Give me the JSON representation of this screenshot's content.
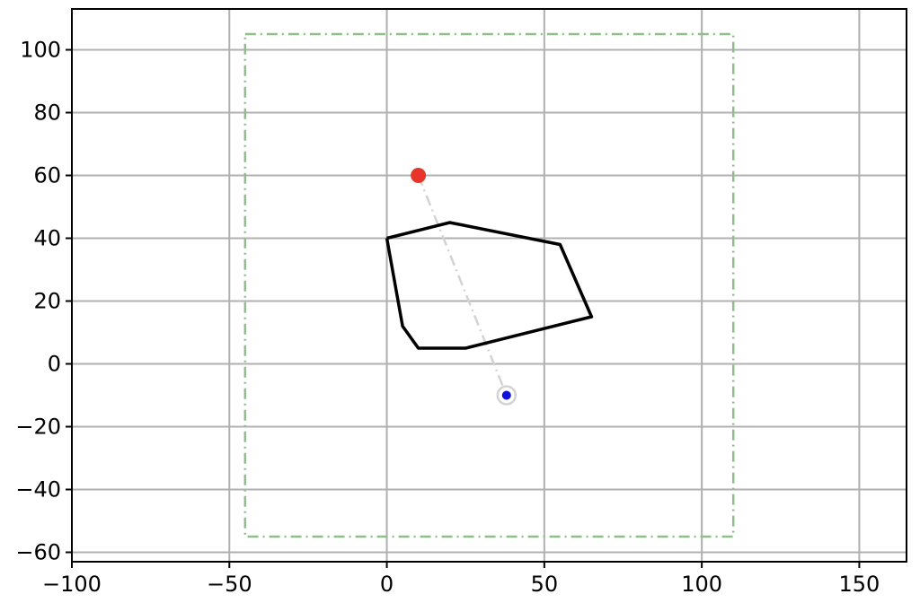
{
  "chart_data": {
    "type": "scatter",
    "xlim": [
      -100,
      165
    ],
    "ylim": [
      -63,
      113
    ],
    "xticks": [
      -100,
      -50,
      0,
      50,
      100,
      150
    ],
    "yticks": [
      -60,
      -40,
      -20,
      0,
      20,
      40,
      60,
      80,
      100
    ],
    "xtick_labels": [
      "−100",
      "−50",
      "0",
      "50",
      "100",
      "150"
    ],
    "ytick_labels": [
      "−60",
      "−40",
      "−20",
      "0",
      "20",
      "40",
      "60",
      "80",
      "100"
    ],
    "grid": true,
    "title": "",
    "xlabel": "",
    "ylabel": "",
    "polygon": {
      "points": [
        [
          0,
          40
        ],
        [
          20,
          45
        ],
        [
          55,
          38
        ],
        [
          65,
          15
        ],
        [
          25,
          5
        ],
        [
          10,
          5
        ],
        [
          5,
          12
        ],
        [
          0,
          40
        ]
      ],
      "color": "#000000"
    },
    "boundary": {
      "x": [
        -45,
        110
      ],
      "y": [
        -55,
        105
      ],
      "color": "#8fbf88",
      "style": "dash-dot"
    },
    "points": [
      {
        "x": 10,
        "y": 60,
        "color": "#e8352b",
        "marker": "filled-circle"
      },
      {
        "x": 38,
        "y": -10,
        "color": "#1010e0",
        "marker": "small-circle-with-ring"
      }
    ],
    "connector": {
      "from": [
        10,
        60
      ],
      "to": [
        38,
        -10
      ],
      "color": "#d3d3d3",
      "style": "dash-dot"
    }
  }
}
